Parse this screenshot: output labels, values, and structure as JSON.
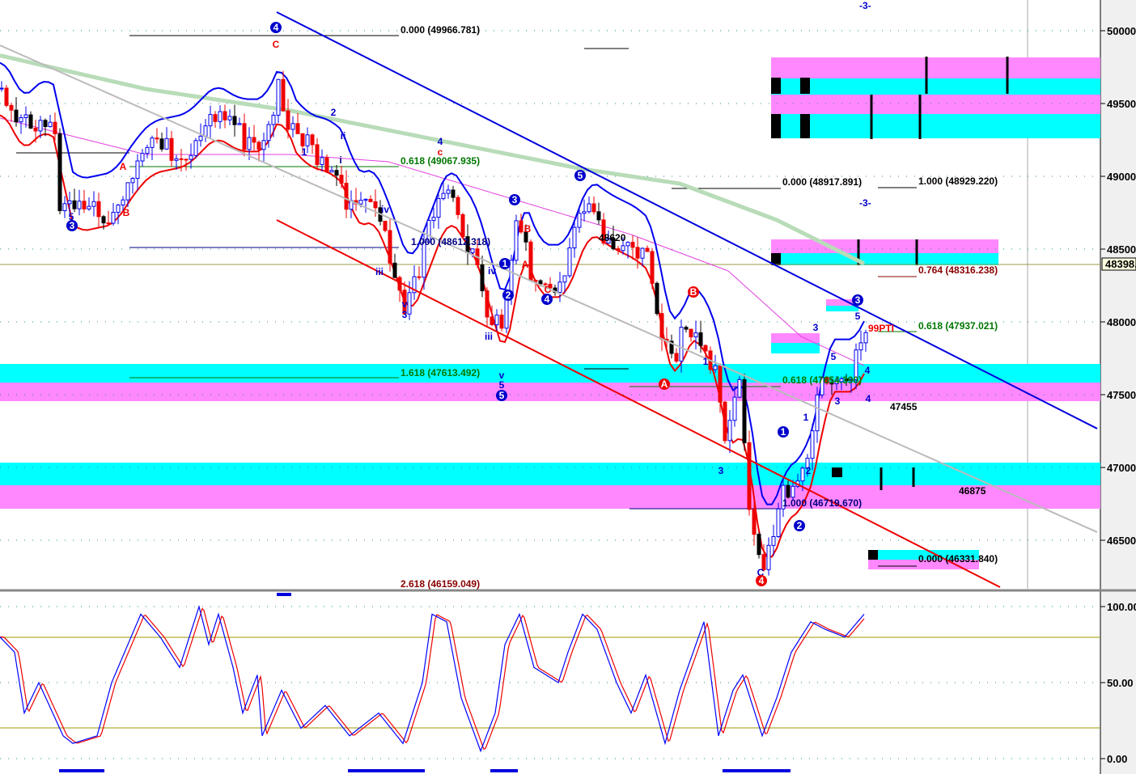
{
  "chart_data": [
    {
      "type": "candlestick",
      "panel": "price",
      "ylim": [
        46200,
        50200
      ],
      "yticks": [
        "50000",
        "49500",
        "49000",
        "48500",
        "48000",
        "47500",
        "47000",
        "46500"
      ],
      "last_price_label": "48398.",
      "grid": true,
      "close_keyframes": [
        [
          0,
          49600
        ],
        [
          3,
          49350
        ],
        [
          8,
          49500
        ],
        [
          11,
          49400
        ],
        [
          12,
          48900
        ],
        [
          15,
          48800
        ],
        [
          22,
          48850
        ],
        [
          27,
          49100
        ],
        [
          30,
          49200
        ],
        [
          37,
          49250
        ],
        [
          43,
          49450
        ],
        [
          48,
          49350
        ],
        [
          53,
          49350
        ],
        [
          57,
          49650
        ],
        [
          58,
          49400
        ],
        [
          62,
          49250
        ],
        [
          67,
          49200
        ],
        [
          70,
          49100
        ],
        [
          72,
          48800
        ],
        [
          75,
          48900
        ],
        [
          78,
          48700
        ],
        [
          83,
          48200
        ],
        [
          87,
          48550
        ],
        [
          91,
          48900
        ],
        [
          93,
          48800
        ],
        [
          97,
          48600
        ],
        [
          100,
          48200
        ],
        [
          103,
          47900
        ],
        [
          106,
          48700
        ],
        [
          110,
          48350
        ],
        [
          115,
          48350
        ],
        [
          120,
          48800
        ],
        [
          124,
          48700
        ],
        [
          130,
          48600
        ],
        [
          133,
          48500
        ],
        [
          136,
          47900
        ],
        [
          138,
          47750
        ],
        [
          140,
          48050
        ],
        [
          143,
          48050
        ],
        [
          147,
          47700
        ],
        [
          149,
          47200
        ],
        [
          152,
          47550
        ],
        [
          154,
          46800
        ],
        [
          157,
          46450
        ],
        [
          160,
          46800
        ],
        [
          164,
          46900
        ],
        [
          167,
          47200
        ],
        [
          169,
          47700
        ],
        [
          172,
          47700
        ],
        [
          175,
          47700
        ],
        [
          178,
          47950
        ]
      ],
      "moving_averages": [
        {
          "color": "#b8dcb8",
          "keyframes": [
            [
              0,
              49830
            ],
            [
              30,
              49600
            ],
            [
              60,
              49450
            ],
            [
              90,
              49250
            ],
            [
              120,
              49050
            ],
            [
              140,
              48950
            ],
            [
              160,
              48700
            ],
            [
              178,
              48400
            ]
          ]
        },
        {
          "color": "#e040e0",
          "keyframes": [
            [
              0,
              49400
            ],
            [
              30,
              49150
            ],
            [
              60,
              49150
            ],
            [
              80,
              49100
            ],
            [
              100,
              48900
            ],
            [
              130,
              48600
            ],
            [
              150,
              48350
            ],
            [
              165,
              47900
            ],
            [
              178,
              47700
            ]
          ]
        }
      ],
      "trendlines": [
        {
          "color": "#0000dd",
          "from": [
            57,
            50128
          ],
          "to": [
            226,
            47267
          ]
        },
        {
          "color": "#ee0000",
          "from": [
            57,
            48700
          ],
          "to": [
            206,
            46178
          ]
        },
        {
          "color": "#bbbbbb",
          "from": [
            0,
            49900
          ],
          "to": [
            226,
            46556
          ]
        }
      ],
      "fib_labels": [
        {
          "text": "0.000 (49966.781)",
          "color": "#000000"
        },
        {
          "text": "0.618 (49067.935)",
          "color": "#007700"
        },
        {
          "text": "1.000 (48612.318)",
          "color": "#000080"
        },
        {
          "text": "1.618 (47613.492)",
          "color": "#007700"
        },
        {
          "text": "2.618 (46159.049)",
          "color": "#880000"
        },
        {
          "text": "0.000 (48917.891)",
          "color": "#000000"
        },
        {
          "text": "1.000 (48929.220)",
          "color": "#000000"
        },
        {
          "text": "0.764 (48316.238)",
          "color": "#880000"
        },
        {
          "text": "0.618 (47937.021)",
          "color": "#007700"
        },
        {
          "text": "0.618 (47654.390)",
          "color": "#007700"
        },
        {
          "text": "1.000 (46719.670)",
          "color": "#000080"
        },
        {
          "text": "0.000 (46331.840)",
          "color": "#000000"
        },
        {
          "text": "48620",
          "color": "#000000"
        },
        {
          "text": "47455",
          "color": "#000000"
        },
        {
          "text": "46875",
          "color": "#000000"
        },
        {
          "text": "99PTI",
          "color": "#ee0000"
        },
        {
          "text": "-3-",
          "color": "#0000cc"
        },
        {
          "text": "-3-",
          "color": "#0000cc"
        }
      ],
      "wave_labels": [
        "4",
        "C",
        "5",
        "3",
        "B",
        "A",
        "1",
        "2",
        "i",
        "ii",
        "iv",
        "iii",
        "v",
        "3",
        "4",
        "c",
        "iii",
        "iv",
        "v",
        "5",
        "5",
        "3",
        "B",
        "A",
        "C",
        "4",
        "1",
        "2",
        "5",
        "B",
        "A",
        "1",
        "3",
        "3",
        "5",
        "C",
        "1",
        "2",
        "1",
        "2",
        "3",
        "4",
        "5",
        "3",
        "4",
        "4"
      ]
    },
    {
      "type": "line",
      "panel": "oscillator",
      "ylim": [
        0,
        100
      ],
      "yticks": [
        "100.00",
        "50.00",
        "0.00"
      ],
      "levels": [
        80,
        20
      ],
      "series": [
        {
          "color": "#0000ff",
          "keyframes": [
            [
              0,
              80
            ],
            [
              3,
              70
            ],
            [
              5,
              30
            ],
            [
              8,
              50
            ],
            [
              13,
              15
            ],
            [
              15,
              10
            ],
            [
              20,
              15
            ],
            [
              23,
              50
            ],
            [
              27,
              80
            ],
            [
              29,
              95
            ],
            [
              33,
              80
            ],
            [
              37,
              60
            ],
            [
              41,
              100
            ],
            [
              43,
              75
            ],
            [
              45,
              95
            ],
            [
              48,
              60
            ],
            [
              50,
              30
            ],
            [
              53,
              55
            ],
            [
              54,
              15
            ],
            [
              58,
              45
            ],
            [
              62,
              20
            ],
            [
              67,
              35
            ],
            [
              72,
              15
            ],
            [
              78,
              30
            ],
            [
              83,
              10
            ],
            [
              87,
              50
            ],
            [
              89,
              95
            ],
            [
              92,
              90
            ],
            [
              95,
              40
            ],
            [
              99,
              5
            ],
            [
              102,
              30
            ],
            [
              104,
              75
            ],
            [
              107,
              95
            ],
            [
              110,
              60
            ],
            [
              115,
              50
            ],
            [
              117,
              70
            ],
            [
              120,
              95
            ],
            [
              123,
              85
            ],
            [
              127,
              50
            ],
            [
              130,
              30
            ],
            [
              133,
              55
            ],
            [
              137,
              10
            ],
            [
              140,
              45
            ],
            [
              145,
              90
            ],
            [
              148,
              15
            ],
            [
              151,
              45
            ],
            [
              153,
              55
            ],
            [
              157,
              15
            ],
            [
              160,
              40
            ],
            [
              163,
              70
            ],
            [
              167,
              90
            ],
            [
              170,
              85
            ],
            [
              174,
              80
            ],
            [
              178,
              95
            ]
          ]
        }
      ]
    }
  ]
}
